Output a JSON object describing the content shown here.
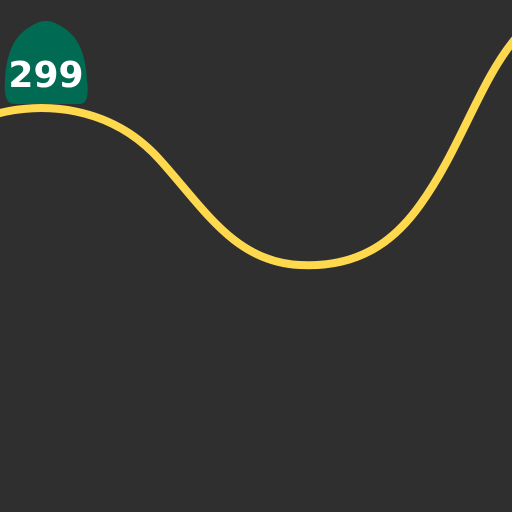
{
  "map": {
    "background_color": "#2f2f2f",
    "road": {
      "type": "highway",
      "color": "#ffd94d"
    },
    "shield": {
      "kind": "state-route-shield",
      "number": "299",
      "fill_color": "#006b52",
      "text_color": "#ffffff"
    }
  }
}
